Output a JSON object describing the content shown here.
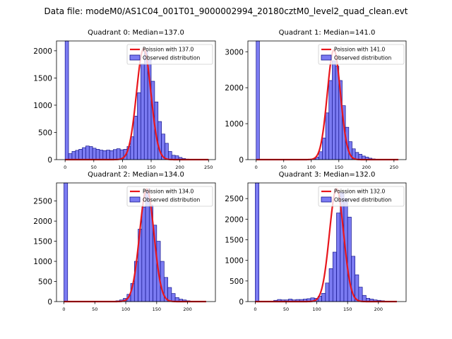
{
  "suptitle": "Data file: modeM0/AS1C04_001T01_9000002994_20180cztM0_level2_quad_clean.evt",
  "colors": {
    "fit": "#e8161c",
    "bar_fill": "#7b7bf2",
    "bar_edge": "#14148c"
  },
  "chart_data": [
    {
      "type": "bar",
      "title": "Quadrant 0: Median=137.0",
      "median": 137.0,
      "legend": [
        "Poission with 137.0",
        "Observed distribution"
      ],
      "legend_position": "top-right",
      "xlim": [
        -15,
        262
      ],
      "ylim": [
        0,
        2180
      ],
      "xticks": [
        0,
        50,
        100,
        150,
        200,
        250
      ],
      "yticks": [
        0,
        500,
        1000,
        1500,
        2000
      ],
      "bin_width": 6,
      "bin_starts": [
        0,
        6,
        12,
        18,
        24,
        30,
        36,
        42,
        48,
        54,
        60,
        66,
        72,
        78,
        84,
        90,
        96,
        102,
        108,
        114,
        120,
        126,
        132,
        138,
        144,
        150,
        156,
        162,
        168,
        174,
        180,
        186,
        192,
        198,
        204,
        210,
        216
      ],
      "counts": [
        2180,
        110,
        150,
        170,
        190,
        220,
        250,
        240,
        210,
        190,
        175,
        165,
        175,
        165,
        185,
        200,
        180,
        190,
        240,
        420,
        800,
        1230,
        1760,
        1990,
        1830,
        1440,
        1060,
        700,
        470,
        300,
        150,
        80,
        70,
        40,
        20,
        10,
        5
      ],
      "fit": {
        "peak": 2040,
        "center": 137.0,
        "sigma": 12.5,
        "x_range": [
          0,
          250
        ]
      }
    },
    {
      "type": "bar",
      "title": "Quadrant 1: Median=141.0",
      "median": 141.0,
      "legend": [
        "Poission with 141.0",
        "Observed distribution"
      ],
      "legend_position": "top-right",
      "xlim": [
        -15,
        272
      ],
      "ylim": [
        0,
        3300
      ],
      "xticks": [
        0,
        50,
        100,
        150,
        200,
        250
      ],
      "yticks": [
        0,
        1000,
        2000,
        3000
      ],
      "bin_width": 6,
      "bin_starts": [
        0,
        102,
        108,
        114,
        120,
        126,
        132,
        138,
        144,
        150,
        156,
        162,
        168,
        174,
        180,
        186,
        192,
        198,
        204,
        210,
        216
      ],
      "counts": [
        3300,
        20,
        70,
        220,
        600,
        1300,
        2200,
        2750,
        2600,
        2200,
        1500,
        900,
        500,
        300,
        200,
        150,
        100,
        70,
        40,
        20,
        10
      ],
      "fit": {
        "peak": 3050,
        "center": 141.0,
        "sigma": 11.9,
        "x_range": [
          0,
          258
        ]
      }
    },
    {
      "type": "bar",
      "title": "Quadrant 2: Median=134.0",
      "median": 134.0,
      "legend": [
        "Poission with 134.0",
        "Observed distribution"
      ],
      "legend_position": "top-right",
      "xlim": [
        -12,
        245
      ],
      "ylim": [
        0,
        2950
      ],
      "xticks": [
        0,
        50,
        100,
        150,
        200
      ],
      "yticks": [
        0,
        500,
        1000,
        1500,
        2000,
        2500
      ],
      "bin_width": 6,
      "bin_starts": [
        0,
        78,
        84,
        90,
        96,
        102,
        108,
        114,
        120,
        126,
        132,
        138,
        144,
        150,
        156,
        162,
        168,
        174,
        180,
        186,
        192,
        198,
        204,
        210
      ],
      "counts": [
        2950,
        10,
        20,
        40,
        80,
        180,
        450,
        1000,
        1800,
        2350,
        2800,
        2400,
        1900,
        1500,
        1000,
        600,
        350,
        200,
        100,
        60,
        40,
        20,
        10,
        5
      ],
      "fit": {
        "peak": 2800,
        "center": 134.0,
        "sigma": 11.6,
        "x_range": [
          0,
          230
        ]
      }
    },
    {
      "type": "bar",
      "title": "Quadrant 3: Median=132.0",
      "median": 132.0,
      "legend": [
        "Poission with 132.0",
        "Observed distribution"
      ],
      "legend_position": "top-right",
      "xlim": [
        -12,
        245
      ],
      "ylim": [
        0,
        2880
      ],
      "xticks": [
        0,
        50,
        100,
        150,
        200
      ],
      "yticks": [
        0,
        500,
        1000,
        1500,
        2000,
        2500
      ],
      "bin_width": 6,
      "bin_starts": [
        0,
        30,
        36,
        42,
        48,
        54,
        60,
        66,
        72,
        78,
        84,
        90,
        96,
        102,
        108,
        114,
        120,
        126,
        132,
        138,
        144,
        150,
        156,
        162,
        168,
        174,
        180,
        186,
        192,
        198,
        204,
        210
      ],
      "counts": [
        2880,
        30,
        50,
        40,
        40,
        60,
        40,
        50,
        50,
        60,
        70,
        90,
        80,
        130,
        200,
        450,
        800,
        1200,
        2150,
        2650,
        2500,
        2050,
        1100,
        650,
        350,
        150,
        80,
        60,
        40,
        30,
        20,
        10
      ],
      "fit": {
        "peak": 2740,
        "center": 132.0,
        "sigma": 11.5,
        "x_range": [
          0,
          230
        ]
      }
    }
  ]
}
